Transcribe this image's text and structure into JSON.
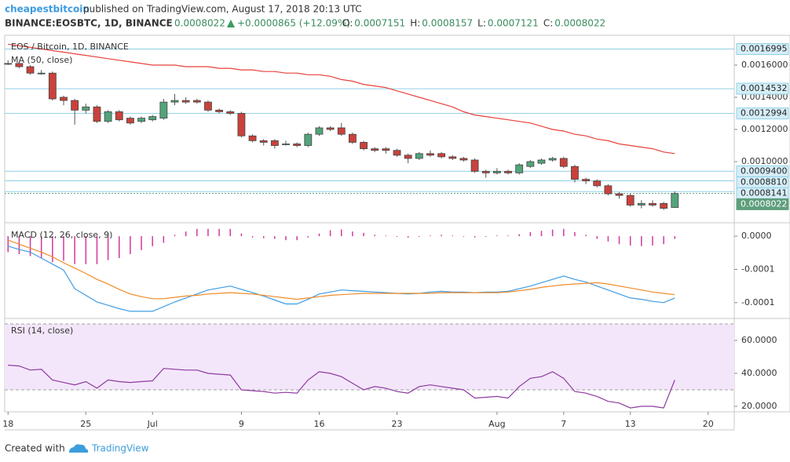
{
  "header": {
    "author": "cheapestbitcoin",
    "published": "published on TradingView.com, August 17, 2018 20:13 UTC",
    "symbol": "BINANCE:EOSBTC, 1D, BINANCE",
    "last": "0.0008022",
    "change": "+0.0000865 (+12.09%)",
    "ohlc": [
      {
        "label": "O:",
        "value": "0.0007151"
      },
      {
        "label": "H:",
        "value": "0.0008157"
      },
      {
        "label": "L:",
        "value": "0.0007121"
      },
      {
        "label": "C:",
        "value": "0.0008022"
      }
    ]
  },
  "footer": {
    "text": "Created with",
    "brand": "TradingView"
  },
  "chart_data": [
    {
      "type": "candlestick",
      "title": "EOS / Bitcoin, 1D, BINANCE",
      "up_color": "#53a47a",
      "down_color": "#c9423b",
      "open": [
        0.00161,
        0.00161,
        0.00159,
        0.00155,
        0.00155,
        0.0014,
        0.00138,
        0.00132,
        0.00134,
        0.00125,
        0.00131,
        0.00127,
        0.00125,
        0.00126,
        0.00127,
        0.00137,
        0.00138,
        0.00138,
        0.00137,
        0.00132,
        0.00131,
        0.0013,
        0.00116,
        0.00113,
        0.00113,
        0.00111,
        0.00111,
        0.0011,
        0.00117,
        0.00121,
        0.00121,
        0.00117,
        0.00112,
        0.00108,
        0.00108,
        0.00107,
        0.00104,
        0.00102,
        0.00105,
        0.00105,
        0.00103,
        0.00102,
        0.00101,
        0.00094,
        0.00093,
        0.00094,
        0.00093,
        0.00097,
        0.00099,
        0.00101,
        0.00102,
        0.00097,
        0.00089,
        0.00088,
        0.00085,
        0.0008,
        0.00079,
        0.00073,
        0.00074,
        0.00074,
        0.0007151
      ],
      "high": [
        0.00163,
        0.00162,
        0.0016,
        0.00157,
        0.00156,
        0.00141,
        0.00139,
        0.00136,
        0.00135,
        0.00132,
        0.00132,
        0.00128,
        0.00128,
        0.00129,
        0.00139,
        0.00142,
        0.0014,
        0.00139,
        0.00138,
        0.00133,
        0.00132,
        0.00131,
        0.00117,
        0.00114,
        0.00114,
        0.00113,
        0.00112,
        0.00118,
        0.00122,
        0.00122,
        0.00124,
        0.00118,
        0.00113,
        0.00109,
        0.00109,
        0.00108,
        0.00105,
        0.00106,
        0.00107,
        0.00106,
        0.00104,
        0.00103,
        0.00102,
        0.00095,
        0.00096,
        0.00095,
        0.00099,
        0.00101,
        0.00102,
        0.00103,
        0.00103,
        0.00098,
        0.0009,
        0.00089,
        0.00086,
        0.00081,
        0.0008,
        0.00076,
        0.00076,
        0.00075,
        0.0008157
      ],
      "low": [
        0.0016,
        0.00158,
        0.00154,
        0.00154,
        0.00138,
        0.00135,
        0.00123,
        0.0013,
        0.00124,
        0.00124,
        0.00125,
        0.00123,
        0.00124,
        0.00125,
        0.00126,
        0.00135,
        0.00136,
        0.00136,
        0.00131,
        0.0013,
        0.00129,
        0.00115,
        0.00112,
        0.0011,
        0.00108,
        0.0011,
        0.00109,
        0.00109,
        0.00116,
        0.00119,
        0.00116,
        0.00111,
        0.00107,
        0.00106,
        0.00105,
        0.00103,
        0.00099,
        0.00101,
        0.00103,
        0.00102,
        0.00101,
        0.001,
        0.00093,
        0.0009,
        0.00092,
        0.00092,
        0.00092,
        0.00096,
        0.00098,
        0.001,
        0.00096,
        0.00087,
        0.00086,
        0.00084,
        0.00079,
        0.00077,
        0.00072,
        0.00071,
        0.00072,
        0.0007,
        0.0007121
      ],
      "close": [
        0.00161,
        0.00159,
        0.00155,
        0.00155,
        0.00139,
        0.00138,
        0.00132,
        0.00134,
        0.00125,
        0.00131,
        0.00126,
        0.00124,
        0.00127,
        0.00128,
        0.00137,
        0.00138,
        0.00137,
        0.00137,
        0.00132,
        0.00131,
        0.0013,
        0.00116,
        0.00113,
        0.00112,
        0.0011,
        0.00111,
        0.0011,
        0.00117,
        0.00121,
        0.0012,
        0.00117,
        0.00112,
        0.00108,
        0.00107,
        0.00107,
        0.00104,
        0.00102,
        0.00105,
        0.00104,
        0.00103,
        0.00102,
        0.00101,
        0.00094,
        0.00093,
        0.00094,
        0.00093,
        0.00098,
        0.001,
        0.00101,
        0.00102,
        0.00097,
        0.00089,
        0.00088,
        0.00085,
        0.0008,
        0.00079,
        0.00073,
        0.00074,
        0.00073,
        0.00071,
        0.0008022
      ],
      "overlays": [
        {
          "name": "MA (50, close)",
          "color": "#e8413b",
          "values": [
            0.00173,
            0.00172,
            0.00171,
            0.0017,
            0.00169,
            0.00168,
            0.00167,
            0.00166,
            0.00165,
            0.00164,
            0.00163,
            0.00162,
            0.00161,
            0.0016,
            0.0016,
            0.0016,
            0.00159,
            0.00159,
            0.00159,
            0.00158,
            0.00158,
            0.00157,
            0.00157,
            0.00156,
            0.00156,
            0.00155,
            0.00155,
            0.00154,
            0.00154,
            0.00153,
            0.00151,
            0.0015,
            0.00148,
            0.00147,
            0.00146,
            0.00144,
            0.00142,
            0.0014,
            0.00138,
            0.00136,
            0.00134,
            0.00131,
            0.00129,
            0.00128,
            0.00127,
            0.00126,
            0.00125,
            0.00124,
            0.00122,
            0.0012,
            0.00119,
            0.00117,
            0.00116,
            0.00114,
            0.00113,
            0.00111,
            0.0011,
            0.00109,
            0.00108,
            0.00106,
            0.00105
          ]
        }
      ],
      "ylim": [
        0.000625,
        0.001785
      ],
      "yticks": [
        {
          "value": 0.0016,
          "label": "0.0016000"
        },
        {
          "value": 0.0014,
          "label": "0.0014000"
        },
        {
          "value": 0.0012,
          "label": "0.0012000"
        },
        {
          "value": 0.001,
          "label": "0.0010000"
        }
      ],
      "levels": [
        {
          "value": 0.0016995,
          "label": "0.0016995"
        },
        {
          "value": 0.0014532,
          "label": "0.0014532"
        },
        {
          "value": 0.0012994,
          "label": "0.0012994"
        },
        {
          "value": 0.00094,
          "label": "0.0009400"
        },
        {
          "value": 0.000881,
          "label": "0.0008810"
        },
        {
          "value": 0.0008141,
          "label": "0.0008141"
        }
      ],
      "level_color": "#8fd0e6",
      "last_price": {
        "value": 0.0008022,
        "label": "0.0008022",
        "color": "#5e9e7c"
      }
    },
    {
      "type": "macd",
      "title": "MACD (12, 26, close, 9)",
      "histogram": {
        "color": "#d2389a",
        "values": [
          -2.4e-05,
          -2.7e-05,
          -3e-05,
          -3.3e-05,
          -3.9e-05,
          -3.7e-05,
          -4.2e-05,
          -4.2e-05,
          -4.2e-05,
          -3.6e-05,
          -3.3e-05,
          -2.7e-05,
          -2.1e-05,
          -1.5e-05,
          -1e-05,
          2e-06,
          7e-06,
          1.1e-05,
          1.1e-05,
          1.1e-05,
          1.1e-05,
          4e-06,
          -2e-06,
          -3e-06,
          -4e-06,
          -6e-06,
          -6e-06,
          -2e-06,
          4e-06,
          9e-06,
          1e-05,
          7e-06,
          5e-06,
          2e-06,
          1e-06,
          -1e-06,
          -2e-06,
          -1e-06,
          1e-06,
          2e-06,
          1e-06,
          -1e-06,
          -2e-06,
          -1e-06,
          1e-06,
          1e-06,
          3e-06,
          6e-06,
          8e-06,
          1e-05,
          1.1e-05,
          6e-06,
          2e-06,
          -4e-06,
          -8e-06,
          -1.2e-05,
          -1.4e-05,
          -1.5e-05,
          -1.4e-05,
          -1.2e-05,
          -4e-06
        ]
      },
      "series": [
        {
          "color": "#3e9ce4",
          "values": [
            -1.5e-05,
            -2e-05,
            -2.4e-05,
            -3.3e-05,
            -4.2e-05,
            -5.1e-05,
            -7.9e-05,
            -8.9e-05,
            -9.9e-05,
            -0.000104,
            -0.000109,
            -0.000113,
            -0.000113,
            -0.000113,
            -0.000106,
            -9.9e-05,
            -9.3e-05,
            -8.7e-05,
            -8.1e-05,
            -7.8e-05,
            -7.5e-05,
            -8e-05,
            -8.5e-05,
            -9e-05,
            -9.6e-05,
            -0.000102,
            -0.000102,
            -9.5e-05,
            -8.7e-05,
            -8.4e-05,
            -8.1e-05,
            -8.2e-05,
            -8.3e-05,
            -8.4e-05,
            -8.5e-05,
            -8.6e-05,
            -8.7e-05,
            -8.6e-05,
            -8.4e-05,
            -8.3e-05,
            -8.4e-05,
            -8.4e-05,
            -8.5e-05,
            -8.4e-05,
            -8.4e-05,
            -8.3e-05,
            -7.9e-05,
            -7.5e-05,
            -7e-05,
            -6.5e-05,
            -6e-05,
            -6.5e-05,
            -6.9e-05,
            -7.5e-05,
            -8.1e-05,
            -8.7e-05,
            -9.3e-05,
            -9.5e-05,
            -9.8e-05,
            -0.0001,
            -9.3e-05
          ]
        },
        {
          "color": "#f08b28",
          "values": [
            -6e-06,
            -1.2e-05,
            -1.8e-05,
            -2.4e-05,
            -3.1e-05,
            -4e-05,
            -4.8e-05,
            -5.6e-05,
            -6.5e-05,
            -7.2e-05,
            -8e-05,
            -8.7e-05,
            -9.1e-05,
            -9.4e-05,
            -9.4e-05,
            -9.2e-05,
            -9e-05,
            -8.9e-05,
            -8.7e-05,
            -8.6e-05,
            -8.5e-05,
            -8.6e-05,
            -8.7e-05,
            -8.9e-05,
            -9.1e-05,
            -9.3e-05,
            -9.5e-05,
            -9.3e-05,
            -9.1e-05,
            -8.9e-05,
            -8.8e-05,
            -8.7e-05,
            -8.6e-05,
            -8.6e-05,
            -8.6e-05,
            -8.6e-05,
            -8.6e-05,
            -8.6e-05,
            -8.6e-05,
            -8.5e-05,
            -8.5e-05,
            -8.5e-05,
            -8.5e-05,
            -8.5e-05,
            -8.5e-05,
            -8.4e-05,
            -8.2e-05,
            -8e-05,
            -7.7e-05,
            -7.5e-05,
            -7.3e-05,
            -7.2e-05,
            -7.1e-05,
            -7e-05,
            -7.2e-05,
            -7.5e-05,
            -7.8e-05,
            -8.1e-05,
            -8.4e-05,
            -8.6e-05,
            -8.8e-05
          ]
        }
      ],
      "ylim": [
        -0.0001226,
        1.9e-05
      ],
      "yticks": [
        {
          "value": 0,
          "label": "0.0000"
        },
        {
          "value": -5e-05,
          "label": "-0.0001"
        },
        {
          "value": -0.0001,
          "label": "-0.0001"
        }
      ]
    },
    {
      "type": "line",
      "title": "RSI (14, close)",
      "series": [
        {
          "color": "#8e3aa0",
          "values": [
            45,
            44.5,
            42,
            42.5,
            36,
            34.5,
            33,
            35,
            31,
            36,
            35,
            34.5,
            35,
            35.5,
            43,
            42.5,
            42,
            42,
            40,
            39.5,
            39,
            30,
            29.5,
            29,
            28,
            28.5,
            28,
            36,
            41,
            40,
            38,
            34,
            30,
            32,
            31,
            29,
            28,
            32,
            33,
            32,
            31,
            30,
            25,
            25.5,
            26,
            25,
            32,
            37,
            38,
            41,
            37,
            29,
            28,
            26,
            23,
            22,
            19,
            20,
            20,
            19,
            36
          ]
        }
      ],
      "band": {
        "values": [
          30,
          70
        ],
        "color": "#f3e6fa",
        "line_color": "#a0a0a0"
      },
      "ylim": [
        16.67,
        72.86
      ],
      "yticks": [
        {
          "value": 60,
          "label": "60.0000"
        },
        {
          "value": 40,
          "label": "40.0000"
        },
        {
          "value": 20,
          "label": "20.0000"
        }
      ],
      "xlim": [
        -0.3,
        65.35
      ],
      "xticks": [
        {
          "value": 0,
          "label": "18"
        },
        {
          "value": 7,
          "label": "25"
        },
        {
          "value": 13,
          "label": "Jul"
        },
        {
          "value": 21,
          "label": "9"
        },
        {
          "value": 28,
          "label": "16"
        },
        {
          "value": 35,
          "label": "23"
        },
        {
          "value": 44,
          "label": "Aug"
        },
        {
          "value": 50,
          "label": "7"
        },
        {
          "value": 56,
          "label": "13"
        },
        {
          "value": 63,
          "label": "20"
        }
      ]
    }
  ]
}
